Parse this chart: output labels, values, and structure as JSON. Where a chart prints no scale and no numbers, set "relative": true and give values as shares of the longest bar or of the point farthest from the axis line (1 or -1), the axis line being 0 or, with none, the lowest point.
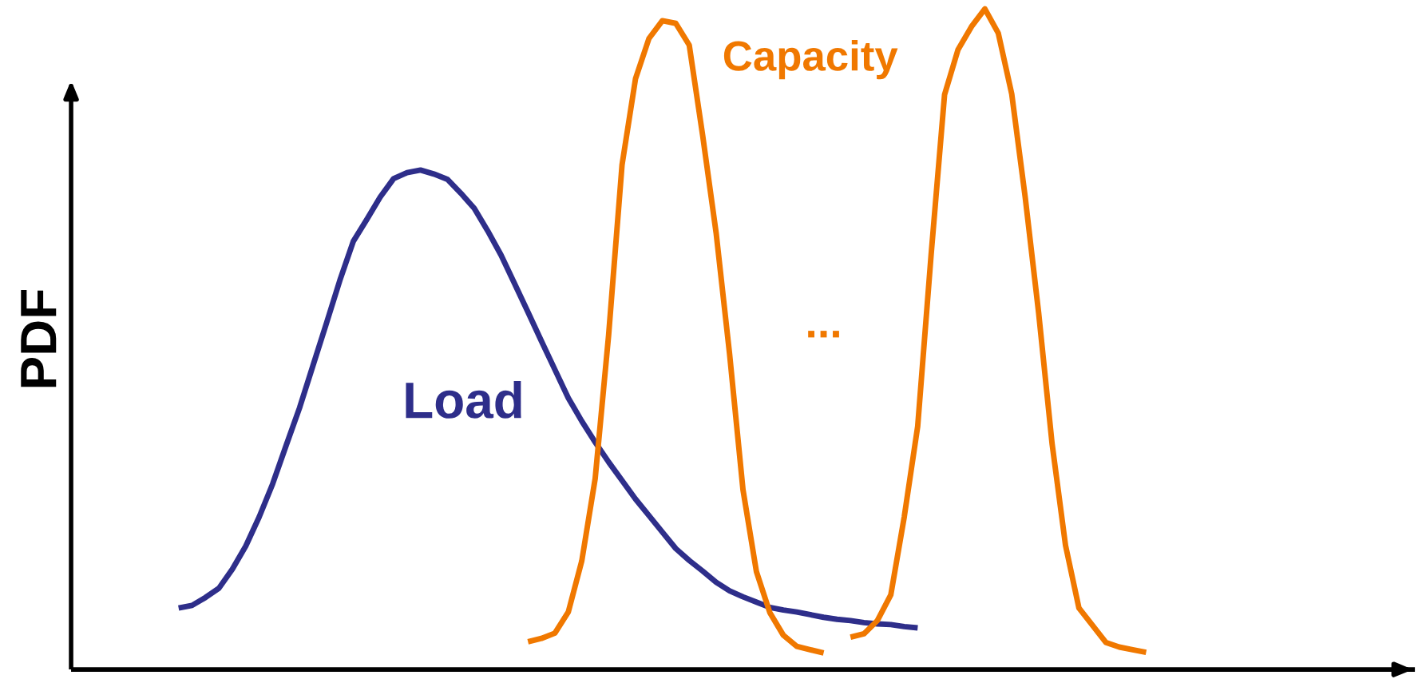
{
  "chart_data": {
    "type": "line",
    "relative": true,
    "ylabel": "PDF",
    "line_style": "solid",
    "categories": [
      null,
      null,
      null,
      null,
      null,
      null,
      null,
      null,
      null,
      null,
      null,
      null,
      null,
      null,
      null,
      null,
      null,
      null,
      null,
      null,
      null,
      null,
      null,
      null,
      null,
      null,
      null,
      null,
      null,
      null,
      null,
      null,
      null,
      null,
      null,
      null,
      null,
      null,
      null,
      null,
      null,
      null,
      null,
      null,
      null,
      null,
      null,
      null,
      null,
      null,
      null,
      null,
      null,
      null,
      null,
      null,
      null,
      null,
      null,
      null,
      null,
      null,
      null,
      null,
      null,
      null,
      null,
      null,
      null,
      null,
      null,
      null,
      null
    ],
    "series": [
      {
        "name": "Load",
        "color": "#2e2e8a",
        "values": [
          0.093,
          0.097,
          0.109,
          0.123,
          0.152,
          0.187,
          0.231,
          0.281,
          0.339,
          0.396,
          0.46,
          0.524,
          0.589,
          0.648,
          0.681,
          0.715,
          0.743,
          0.752,
          0.756,
          0.75,
          0.742,
          0.721,
          0.698,
          0.664,
          0.627,
          0.584,
          0.541,
          0.497,
          0.454,
          0.411,
          0.376,
          0.344,
          0.314,
          0.286,
          0.258,
          0.233,
          0.208,
          0.183,
          0.165,
          0.149,
          0.132,
          0.119,
          0.11,
          0.102,
          0.094,
          0.09,
          0.087,
          0.083,
          0.079,
          0.076,
          0.074,
          0.071,
          0.069,
          0.068,
          0.065,
          0.063,
          null,
          null,
          null,
          null,
          null,
          null,
          null,
          null,
          null,
          null,
          null,
          null,
          null,
          null,
          null,
          null,
          null
        ]
      },
      {
        "name": "Capacity",
        "color": "#f07800",
        "values": [
          null,
          null,
          null,
          null,
          null,
          null,
          null,
          null,
          null,
          null,
          null,
          null,
          null,
          null,
          null,
          null,
          null,
          null,
          null,
          null,
          null,
          null,
          null,
          null,
          null,
          null,
          0.042,
          0.047,
          0.055,
          0.087,
          0.164,
          0.289,
          0.506,
          0.764,
          0.894,
          0.955,
          0.982,
          0.978,
          0.945,
          0.808,
          0.661,
          0.478,
          0.272,
          0.148,
          0.086,
          0.052,
          0.035,
          0.03,
          0.025,
          null,
          null,
          null,
          null,
          null,
          null,
          null,
          null,
          null,
          null,
          null,
          null,
          null,
          null,
          null,
          null,
          null,
          null,
          null,
          null,
          null,
          null,
          null,
          null
        ]
      },
      {
        "color": "#f07800",
        "values": [
          null,
          null,
          null,
          null,
          null,
          null,
          null,
          null,
          null,
          null,
          null,
          null,
          null,
          null,
          null,
          null,
          null,
          null,
          null,
          null,
          null,
          null,
          null,
          null,
          null,
          null,
          null,
          null,
          null,
          null,
          null,
          null,
          null,
          null,
          null,
          null,
          null,
          null,
          null,
          null,
          null,
          null,
          null,
          null,
          null,
          null,
          null,
          null,
          null,
          null,
          0.049,
          0.054,
          0.074,
          0.113,
          0.231,
          0.368,
          0.628,
          0.87,
          0.938,
          0.973,
          1,
          0.963,
          0.871,
          0.715,
          0.54,
          0.342,
          0.188,
          0.093,
          0.067,
          0.041,
          0.034,
          0.03,
          0.026
        ]
      }
    ],
    "annotations": [
      "..."
    ]
  }
}
